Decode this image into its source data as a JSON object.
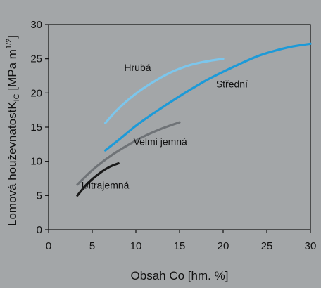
{
  "chart_data": {
    "type": "line",
    "title": "",
    "xlabel": "Obsah Co [hm. %]",
    "ylabel_main": "Lomová houževnatost",
    "ylabel_symbol": "K",
    "ylabel_sub": "IC",
    "ylabel_unit_open": " [MPa m",
    "ylabel_unit_sup": "1/2",
    "ylabel_unit_close": "]",
    "xlim": [
      0,
      30
    ],
    "ylim": [
      0,
      30
    ],
    "xticks": [
      0,
      5,
      10,
      15,
      20,
      25,
      30
    ],
    "yticks": [
      0,
      5,
      10,
      15,
      20,
      25,
      30
    ],
    "grid": false,
    "legend": "none",
    "series": [
      {
        "name": "Hrubá",
        "color": "#7cc6ec",
        "x": [
          6.5,
          8,
          10,
          12,
          14,
          16,
          18,
          20
        ],
        "y": [
          15.6,
          17.7,
          19.9,
          21.6,
          23.0,
          24.0,
          24.6,
          25.0
        ]
      },
      {
        "name": "Střední",
        "color": "#1c9ad8",
        "x": [
          6.5,
          8,
          10,
          12,
          14,
          16,
          18,
          20,
          22,
          24,
          26,
          28,
          30
        ],
        "y": [
          11.6,
          13.1,
          15.2,
          17.0,
          18.7,
          20.3,
          21.8,
          23.1,
          24.3,
          25.4,
          26.2,
          26.8,
          27.2
        ]
      },
      {
        "name": "Velmi jemná",
        "color": "#6f7377",
        "x": [
          3.3,
          5,
          7,
          9,
          11,
          13,
          15
        ],
        "y": [
          6.6,
          8.7,
          10.7,
          12.3,
          13.7,
          14.8,
          15.7
        ]
      },
      {
        "name": "Ultrajemná",
        "color": "#1a1a1a",
        "x": [
          3.3,
          4.5,
          6,
          7,
          8
        ],
        "y": [
          5.0,
          6.8,
          8.4,
          9.2,
          9.7
        ]
      }
    ]
  }
}
